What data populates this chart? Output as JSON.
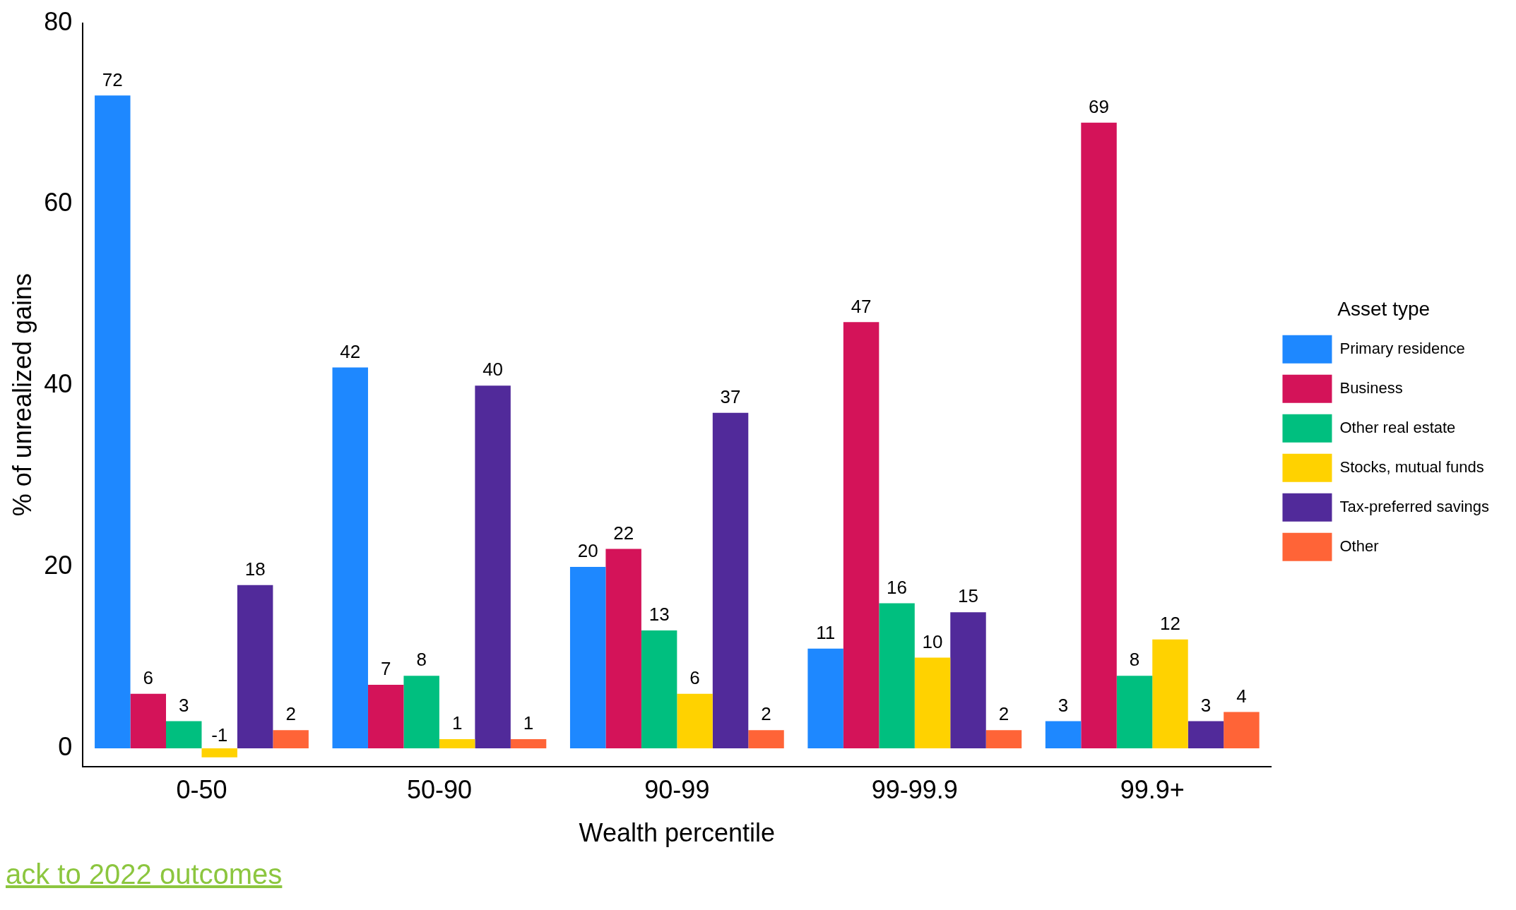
{
  "chart_data": {
    "type": "bar",
    "xlabel": "Wealth percentile",
    "ylabel": "% of unrealized gains",
    "legend_title": "Asset type",
    "categories": [
      "0-50",
      "50-90",
      "90-99",
      "99-99.9",
      "99.9+"
    ],
    "series": [
      {
        "name": "Primary residence",
        "color": "#1e88ff",
        "values": [
          72,
          42,
          20,
          11,
          3
        ]
      },
      {
        "name": "Business",
        "color": "#d41359",
        "values": [
          6,
          7,
          22,
          47,
          69
        ]
      },
      {
        "name": "Other real estate",
        "color": "#00bf7f",
        "values": [
          3,
          8,
          13,
          16,
          8
        ]
      },
      {
        "name": "Stocks, mutual funds",
        "color": "#ffd200",
        "values": [
          -1,
          1,
          6,
          10,
          12
        ]
      },
      {
        "name": "Tax-preferred savings",
        "color": "#512a9a",
        "values": [
          18,
          40,
          37,
          15,
          3
        ]
      },
      {
        "name": "Other",
        "color": "#ff6437",
        "values": [
          2,
          1,
          2,
          2,
          4
        ]
      }
    ],
    "ylim": [
      -2,
      80
    ],
    "yticks": [
      0,
      20,
      40,
      60,
      80
    ],
    "grid": false,
    "legend": "right",
    "data_labels": true,
    "annotations": [
      "ack to 2022 outcomes"
    ]
  }
}
